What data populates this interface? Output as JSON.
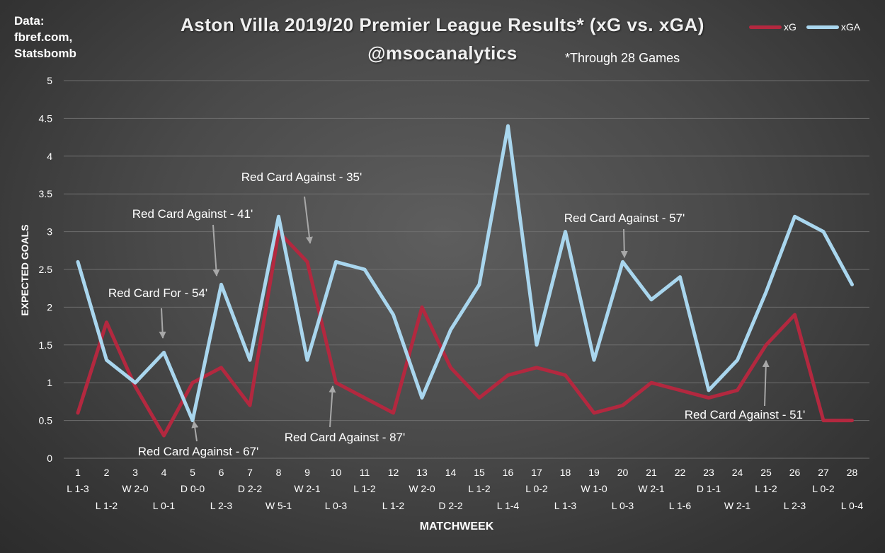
{
  "source": {
    "lines": [
      "Data:",
      "fbref.com,",
      "Statsbomb"
    ]
  },
  "header": {
    "title": "Aston Villa 2019/20 Premier League Results* (xG vs. xGA)",
    "subtitle": "@msocanalytics",
    "note": "*Through 28 Games"
  },
  "colors": {
    "xG": "#b3283f",
    "xGA": "#a9d6ee",
    "grid": "#6e6e6e",
    "annotation_arrow": "#a8a8a8"
  },
  "chart_data": {
    "type": "line",
    "title": "Aston Villa 2019/20 Premier League Results* (xG vs. xGA)",
    "xlabel": "MATCHWEEK",
    "ylabel": "EXPECTED GOALS",
    "ylim": [
      0,
      5
    ],
    "yticks": [
      "0",
      "0.5",
      "1",
      "1.5",
      "2",
      "2.5",
      "3",
      "3.5",
      "4",
      "4.5",
      "5"
    ],
    "grid": true,
    "legend_position": "top-right",
    "x": [
      "1",
      "2",
      "3",
      "4",
      "5",
      "6",
      "7",
      "8",
      "9",
      "10",
      "11",
      "12",
      "13",
      "14",
      "15",
      "16",
      "17",
      "18",
      "19",
      "20",
      "21",
      "22",
      "23",
      "24",
      "25",
      "26",
      "27",
      "28"
    ],
    "results": [
      "L 1-3",
      "L 1-2",
      "W 2-0",
      "L 0-1",
      "D 0-0",
      "L 2-3",
      "D 2-2",
      "W 5-1",
      "W 2-1",
      "L 0-3",
      "L 1-2",
      "L 1-2",
      "W 2-0",
      "D 2-2",
      "L 1-2",
      "L 1-4",
      "L 0-2",
      "L 1-3",
      "W 1-0",
      "L 0-3",
      "W 2-1",
      "L 1-6",
      "D 1-1",
      "W 2-1",
      "L 1-2",
      "L 2-3",
      "L 0-2",
      "L 0-4"
    ],
    "series": [
      {
        "name": "xG",
        "values": [
          0.6,
          1.8,
          0.95,
          0.3,
          1.0,
          1.2,
          0.7,
          3.0,
          2.6,
          1.0,
          0.8,
          0.6,
          2.0,
          1.2,
          0.8,
          1.1,
          1.2,
          1.1,
          0.6,
          0.7,
          1.0,
          0.9,
          0.8,
          0.9,
          1.5,
          1.9,
          0.5,
          0.5
        ]
      },
      {
        "name": "xGA",
        "values": [
          2.6,
          1.3,
          1.0,
          1.4,
          0.5,
          2.3,
          1.3,
          3.2,
          1.3,
          2.6,
          2.5,
          1.9,
          0.8,
          1.7,
          2.3,
          4.4,
          1.5,
          3.0,
          1.3,
          2.6,
          2.1,
          2.4,
          0.9,
          1.3,
          2.2,
          3.2,
          3.0,
          2.3
        ]
      }
    ],
    "annotations": [
      {
        "text": "Red Card Against - 35'",
        "matchweek": "9"
      },
      {
        "text": "Red Card Against - 41'",
        "matchweek": "6"
      },
      {
        "text": "Red Card Against - 57'",
        "matchweek": "20"
      },
      {
        "text": "Red Card For - 54'",
        "matchweek": "4"
      },
      {
        "text": "Red Card Against - 67'",
        "matchweek": "5"
      },
      {
        "text": "Red Card Against - 87'",
        "matchweek": "10"
      },
      {
        "text": "Red Card Against - 51'",
        "matchweek": "25"
      }
    ]
  }
}
